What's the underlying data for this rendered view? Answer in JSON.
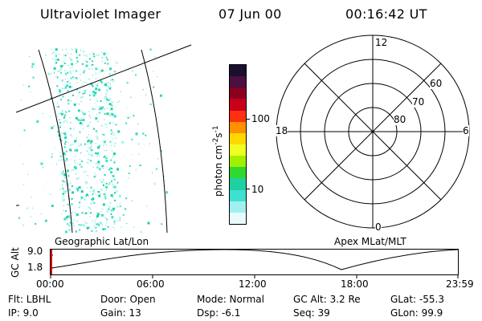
{
  "header": {
    "instrument": "Ultraviolet Imager",
    "date": "07 Jun 00",
    "time": "00:16:42 UT"
  },
  "colorbar": {
    "label_main": "photon cm",
    "label_sup1": "-2",
    "label_mid": "s",
    "label_sup2": "-1",
    "tick_100": "100",
    "tick_10": "10",
    "colors": [
      "#1a0f2e",
      "#4a1040",
      "#8a0020",
      "#c80018",
      "#ff3010",
      "#ff9000",
      "#ffd800",
      "#f0ff20",
      "#a0f000",
      "#30d830",
      "#20d0a0",
      "#40e0d0",
      "#a0f0f0",
      "#e8fbfb"
    ]
  },
  "polar": {
    "mlt_12": "12",
    "mlt_18": "18",
    "mlt_6": "6",
    "mlt_0": "0",
    "lat_60": "60",
    "lat_70": "70",
    "lat_80": "80"
  },
  "labels": {
    "left_panel": "Geographic Lat/Lon",
    "right_panel": "Apex MLat/MLT"
  },
  "timeline": {
    "axis_label": "GC Alt",
    "y_top": "9.0",
    "y_bottom": "1.8",
    "ticks": [
      "00:00",
      "06:00",
      "12:00",
      "18:00",
      "23:59"
    ]
  },
  "info": {
    "filter": "Flt: LBHL",
    "ip": "IP:  9.0",
    "door": "Door: Open",
    "gain": "Gain: 13",
    "mode": "Mode: Normal",
    "dsp": "Dsp:    -6.1",
    "gc_alt": "GC Alt: 3.2 Re",
    "seq": "Seq: 39",
    "glat": "GLat: -55.3",
    "glon": "GLon:  99.9"
  }
}
